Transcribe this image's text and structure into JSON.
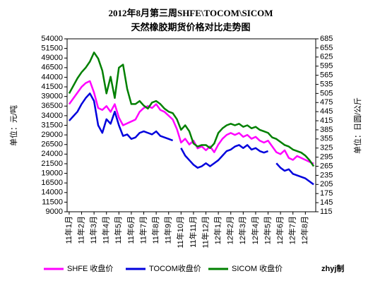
{
  "chart_data": {
    "type": "line",
    "title": "2012年8月第三周SHFE\\TOCOM\\SICOM",
    "subtitle": "天然橡胶期货价格对比走势图",
    "ylabel": "单位：元/吨",
    "y2label": "单位：日圆/公斤",
    "annotations": [
      "zhyj制"
    ],
    "categories": [
      "11年1月",
      null,
      null,
      "11年2月",
      null,
      null,
      "11年3月",
      null,
      null,
      "11年4月",
      null,
      null,
      "11年5月",
      null,
      null,
      "11年6月",
      null,
      null,
      "11年7月",
      null,
      null,
      "11年8月",
      null,
      null,
      "11年9月",
      null,
      null,
      "11年10月",
      null,
      null,
      "11年11月",
      null,
      null,
      "11年12月",
      null,
      null,
      "12年1月",
      null,
      null,
      "12年2月",
      null,
      null,
      "12年3月",
      null,
      null,
      "12年4月",
      null,
      null,
      "12年5月",
      null,
      null,
      "12年6月",
      null,
      null,
      "12年7月",
      null,
      null,
      "12年8月",
      null,
      null
    ],
    "series": [
      {
        "name": "SHFE 收盘价",
        "color": "#ff00ff",
        "values": [
          37000,
          38500,
          40000,
          41500,
          42500,
          43000,
          40000,
          36000,
          35500,
          36500,
          35000,
          37000,
          33500,
          31500,
          32000,
          32500,
          33000,
          35000,
          36000,
          36500,
          36000,
          37000,
          35500,
          35000,
          34000,
          33000,
          30500,
          27000,
          28000,
          26500,
          27500,
          25500,
          26000,
          25000,
          26000,
          24500,
          26500,
          28000,
          29000,
          29500,
          29000,
          29500,
          28500,
          29000,
          28000,
          28500,
          27500,
          27000,
          27500,
          26000,
          24500,
          24000,
          25000,
          23000,
          22500,
          23500,
          23000,
          22500,
          22000,
          21500
        ]
      },
      {
        "name": "TOCOM收盘价",
        "color": "#0000dd",
        "axis": "y2",
        "values": [
          415,
          430,
          445,
          470,
          490,
          505,
          480,
          400,
          375,
          420,
          405,
          445,
          400,
          365,
          370,
          355,
          360,
          375,
          380,
          375,
          370,
          380,
          365,
          360,
          355,
          350,
          null,
          325,
          300,
          285,
          270,
          260,
          265,
          275,
          265,
          275,
          285,
          300,
          315,
          320,
          330,
          335,
          325,
          335,
          320,
          325,
          315,
          310,
          315,
          null,
          275,
          260,
          250,
          255,
          240,
          235,
          230,
          225,
          215,
          205
        ]
      },
      {
        "name": "SICOM 收盘价",
        "color": "#008000",
        "axis": "y2",
        "values": [
          505,
          530,
          555,
          575,
          590,
          610,
          640,
          620,
          580,
          505,
          560,
          490,
          590,
          600,
          520,
          470,
          470,
          480,
          465,
          455,
          475,
          480,
          470,
          455,
          445,
          440,
          420,
          385,
          400,
          380,
          340,
          330,
          335,
          335,
          325,
          340,
          375,
          390,
          400,
          405,
          400,
          405,
          395,
          400,
          390,
          395,
          385,
          380,
          375,
          360,
          355,
          345,
          335,
          330,
          320,
          315,
          310,
          300,
          285,
          265
        ]
      }
    ],
    "ylim": [
      9000,
      54000
    ],
    "yticks": [
      9000,
      11500,
      14000,
      16500,
      19000,
      21500,
      24000,
      26500,
      29000,
      31500,
      34000,
      36500,
      39000,
      41500,
      44000,
      46500,
      49000,
      51500,
      54000
    ],
    "y2lim": [
      115,
      685
    ],
    "y2ticks": [
      115,
      145,
      175,
      205,
      235,
      265,
      295,
      325,
      355,
      385,
      415,
      445,
      475,
      505,
      535,
      565,
      595,
      625,
      655,
      685
    ],
    "grid": false,
    "legend": "bottom"
  }
}
